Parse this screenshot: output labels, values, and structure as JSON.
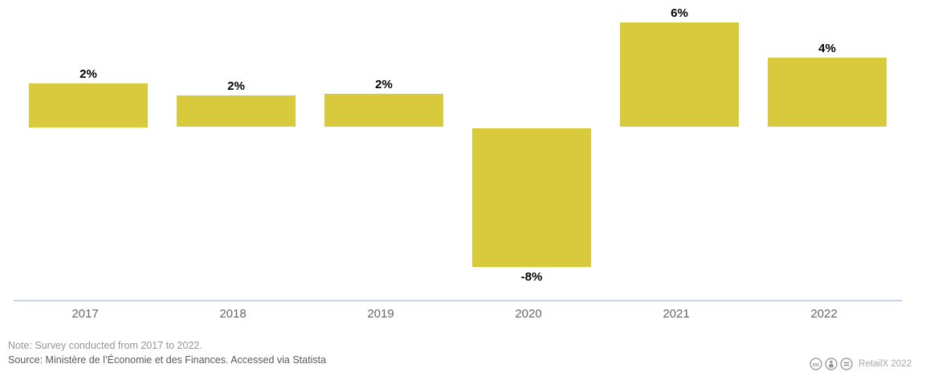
{
  "chart_data": {
    "type": "bar",
    "title": "",
    "xlabel": "",
    "ylabel": "",
    "categories": [
      "2017",
      "2018",
      "2019",
      "2020",
      "2021",
      "2022"
    ],
    "values": [
      2,
      2,
      2,
      -8,
      6,
      4
    ],
    "bar_labels": [
      "2%",
      "2%",
      "2%",
      "-8%",
      "6%",
      "4%"
    ],
    "rendered_heights_pct": [
      2.5,
      1.8,
      1.9,
      -8,
      6,
      4
    ],
    "unit": "%",
    "baseline": 0,
    "ylim": [
      -8.5,
      6.5
    ],
    "grid": false,
    "legend": false,
    "bar_color": "#d9c93c",
    "bar_label_color": "#000000",
    "axis_line_color": "#c9d2e4",
    "tick_label_color": "#666666"
  },
  "footnotes": {
    "note": "Note: Survey conducted from 2017 to 2022.",
    "source": "Source: Ministère de l’Économie et des Finances. Accessed via Statista"
  },
  "attribution": {
    "license_icons": [
      "creative-commons",
      "attribution",
      "no-derivatives"
    ],
    "icon_color": "#8f8f8f",
    "text": "RetailX 2022"
  }
}
